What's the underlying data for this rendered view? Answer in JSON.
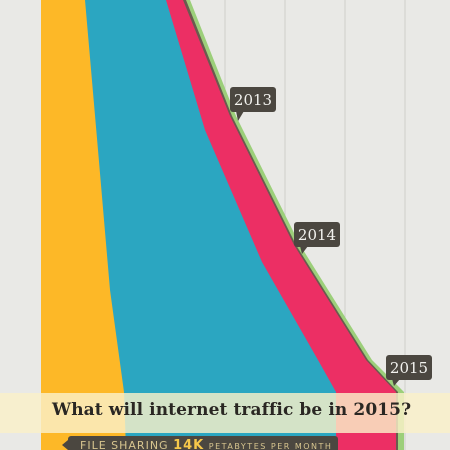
{
  "chart_data": {
    "type": "area",
    "title": "What will internet traffic be in 2015?",
    "x": [
      "2013",
      "2014",
      "2015"
    ],
    "colors": {
      "background": "#e9e9e6",
      "gridline": "#cfcfcb",
      "yellow": "#fdb827",
      "teal": "#2ba6c1",
      "pink": "#ec2f64",
      "green": "#9ccf7a",
      "callout_bg": "#4b4740",
      "callout_text": "#f2f2ee"
    }
  },
  "footer": {
    "category": "FILE SHARING",
    "value": "14K",
    "unit": "PETABYTES PER MONTH"
  }
}
